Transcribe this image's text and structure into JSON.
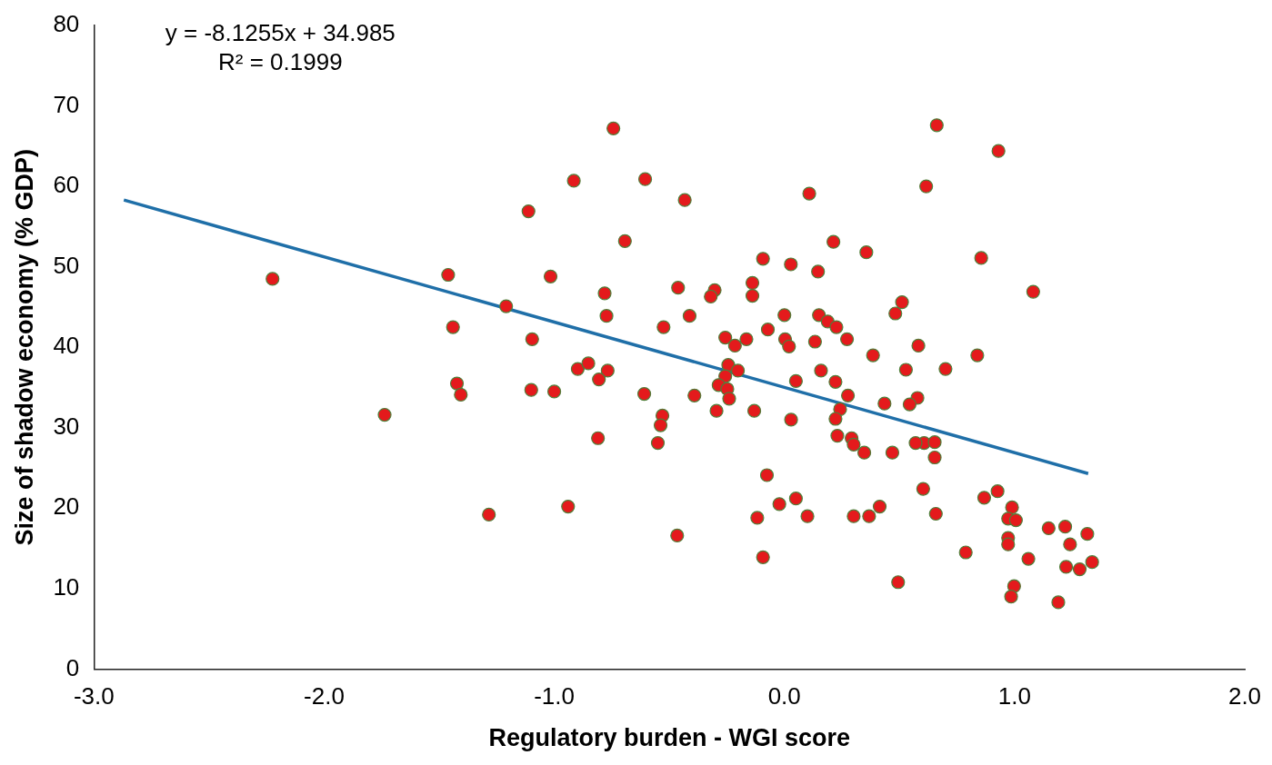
{
  "chart_data": {
    "type": "scatter",
    "xlabel": "Regulatory burden - WGI score",
    "ylabel": "Size of shadow economy (% GDP)",
    "annotations": [
      "y = -8.1255x + 34.985",
      "R² = 0.1999"
    ],
    "xlim": [
      -3,
      2
    ],
    "xticks": [
      {
        "value": -3,
        "label": "-3.0"
      },
      {
        "value": -2,
        "label": "-2.0"
      },
      {
        "value": -1,
        "label": "-1.0"
      },
      {
        "value": 0,
        "label": "0.0"
      },
      {
        "value": 1,
        "label": "1.0"
      },
      {
        "value": 2,
        "label": "2.0"
      }
    ],
    "ylim": [
      0,
      80
    ],
    "yticks": [
      0,
      10,
      20,
      30,
      40,
      50,
      60,
      70,
      80
    ],
    "series": [
      {
        "marker": "circle",
        "color": "#e41a1c",
        "x": [
          -0.743,
          -0.915,
          -1.112,
          -0.693,
          -2.224,
          -1.461,
          -1.016,
          -0.781,
          -1.209,
          -0.773,
          -1.44,
          -1.096,
          -0.898,
          -0.852,
          -0.768,
          -0.806,
          -1.423,
          -1.406,
          -1.1,
          -1.0,
          -1.737,
          -0.81,
          -0.94,
          -1.284,
          -0.605,
          -0.433,
          0.108,
          0.213,
          0.356,
          -0.093,
          0.028,
          0.146,
          -0.462,
          -0.303,
          -0.32,
          -0.139,
          -0.139,
          0.511,
          0.482,
          -0.412,
          0.0,
          0.15,
          0.188,
          0.226,
          -0.525,
          -0.072,
          -0.257,
          -0.215,
          -0.165,
          0.003,
          0.02,
          0.133,
          0.272,
          0.385,
          -0.244,
          -0.202,
          -0.257,
          -0.286,
          -0.248,
          -0.24,
          -0.295,
          -0.609,
          -0.391,
          -0.53,
          -0.538,
          -0.55,
          -0.131,
          0.029,
          0.05,
          0.159,
          0.222,
          0.276,
          0.528,
          0.435,
          0.242,
          0.222,
          0.23,
          0.292,
          0.301,
          0.347,
          0.469,
          -0.076,
          0.05,
          -0.022,
          -0.118,
          0.1,
          0.301,
          0.368,
          0.414,
          -0.466,
          -0.093,
          0.494,
          0.662,
          0.93,
          0.616,
          0.855,
          1.081,
          0.582,
          0.838,
          0.7,
          0.578,
          0.544,
          0.607,
          0.653,
          0.57,
          0.653,
          0.603,
          0.658,
          0.868,
          0.926,
          0.989,
          0.972,
          1.006,
          0.972,
          0.972,
          0.788,
          1.06,
          1.148,
          1.22,
          1.316,
          1.241,
          1.224,
          1.283,
          1.337,
          0.998,
          0.985,
          1.19
        ],
        "values": [
          67.2,
          60.7,
          56.9,
          53.2,
          48.5,
          49.0,
          48.8,
          46.7,
          45.1,
          43.9,
          42.5,
          41.0,
          37.3,
          38.0,
          37.1,
          36.0,
          35.5,
          34.1,
          34.7,
          34.5,
          31.6,
          28.7,
          20.2,
          19.2,
          60.9,
          58.3,
          59.1,
          53.1,
          51.8,
          51.0,
          50.3,
          49.4,
          47.4,
          47.1,
          46.3,
          48.0,
          46.4,
          45.6,
          44.2,
          43.9,
          44.0,
          44.0,
          43.2,
          42.5,
          42.5,
          42.2,
          41.2,
          40.2,
          41.0,
          41.0,
          40.1,
          40.7,
          41.0,
          39.0,
          37.8,
          37.1,
          36.4,
          35.3,
          34.8,
          33.6,
          32.1,
          34.2,
          34.0,
          31.5,
          30.3,
          28.1,
          32.1,
          31.0,
          35.8,
          37.1,
          35.7,
          34.0,
          37.2,
          33.0,
          32.3,
          31.1,
          29.0,
          28.7,
          27.9,
          26.9,
          26.9,
          24.1,
          21.2,
          20.5,
          18.8,
          19.0,
          19.0,
          19.0,
          20.2,
          16.6,
          13.9,
          10.8,
          67.6,
          64.4,
          60.0,
          51.1,
          46.9,
          40.2,
          39.0,
          37.3,
          33.7,
          32.9,
          28.1,
          28.2,
          28.1,
          26.3,
          22.4,
          19.3,
          21.3,
          22.1,
          20.1,
          18.7,
          18.5,
          16.3,
          15.5,
          14.5,
          13.7,
          17.5,
          17.7,
          16.8,
          15.5,
          12.7,
          12.4,
          13.3,
          10.3,
          9.0,
          8.3
        ]
      },
      {
        "type": "line",
        "color": "#1f6fa8",
        "x": [
          -2.87,
          1.32
        ],
        "values": [
          58.3,
          24.3
        ]
      }
    ]
  }
}
